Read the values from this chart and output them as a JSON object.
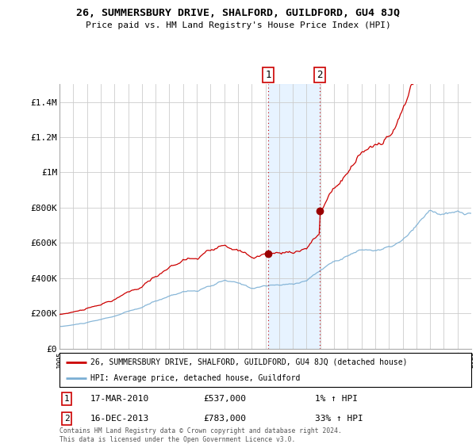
{
  "title": "26, SUMMERSBURY DRIVE, SHALFORD, GUILDFORD, GU4 8JQ",
  "subtitle": "Price paid vs. HM Land Registry's House Price Index (HPI)",
  "legend_line1": "26, SUMMERSBURY DRIVE, SHALFORD, GUILDFORD, GU4 8JQ (detached house)",
  "legend_line2": "HPI: Average price, detached house, Guildford",
  "annotation1_label": "1",
  "annotation1_date": "17-MAR-2010",
  "annotation1_price": "£537,000",
  "annotation1_hpi": "1% ↑ HPI",
  "annotation1_year": 2010.21,
  "annotation1_value": 537000,
  "annotation2_label": "2",
  "annotation2_date": "16-DEC-2013",
  "annotation2_price": "£783,000",
  "annotation2_hpi": "33% ↑ HPI",
  "annotation2_year": 2013.96,
  "annotation2_value": 783000,
  "footer": "Contains HM Land Registry data © Crown copyright and database right 2024.\nThis data is licensed under the Open Government Licence v3.0.",
  "red_color": "#cc0000",
  "blue_color": "#7bafd4",
  "shade_color": "#ddeeff",
  "marker_color": "#990000",
  "background_color": "#ffffff",
  "grid_color": "#cccccc",
  "ylim": [
    0,
    1500000
  ],
  "yticks": [
    0,
    200000,
    400000,
    600000,
    800000,
    1000000,
    1200000,
    1400000
  ],
  "ytick_labels": [
    "£0",
    "£200K",
    "£400K",
    "£600K",
    "£800K",
    "£1M",
    "£1.2M",
    "£1.4M"
  ],
  "xstart": 1995,
  "xend": 2025
}
